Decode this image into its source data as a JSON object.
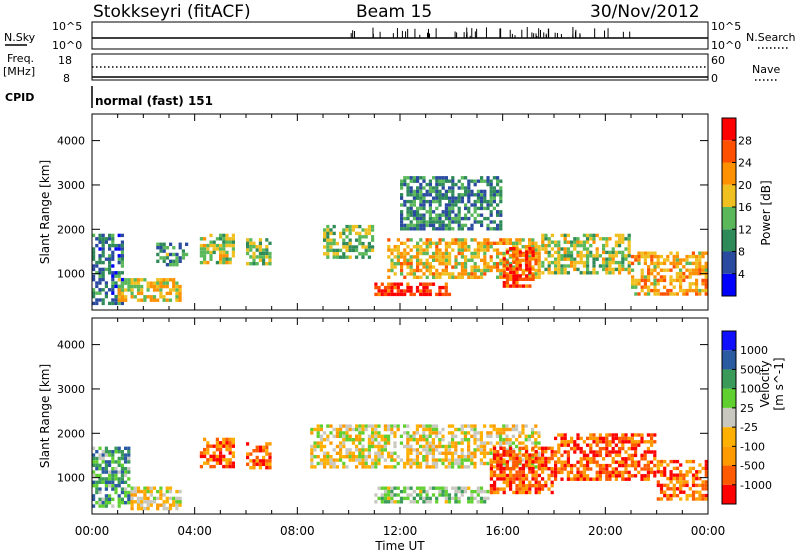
{
  "header": {
    "station": "Stokkseyri (fitACF)",
    "beam": "Beam 15",
    "date": "30/Nov/2012"
  },
  "top_panels": {
    "nsky_label": "N.Sky",
    "nsky_ticks": [
      "10^5",
      "10^0"
    ],
    "nsearch_label": "N.Search",
    "nsearch_ticks": [
      "10^5",
      "10^0"
    ],
    "freq_label": "Freq.",
    "freq_unit": "[MHz]",
    "freq_ticks": [
      "18",
      "8"
    ],
    "nave_label": "Nave",
    "nave_ticks": [
      "60",
      "0"
    ],
    "cpid_label": "CPID",
    "cpid_value": "normal (fast) 151"
  },
  "colors": {
    "power": [
      "#0000ff",
      "#2a4aa0",
      "#2f8a5a",
      "#5ab85a",
      "#f0c020",
      "#ff9000",
      "#ff5000",
      "#ff0000"
    ],
    "velocity": [
      "#ff0000",
      "#ff5a00",
      "#ff9a00",
      "#ffb000",
      "#c8c8c0",
      "#60d030",
      "#3a9a5a",
      "#2a5aa0",
      "#1010ff"
    ]
  },
  "chart_data": [
    {
      "type": "heatmap",
      "name": "power-panel",
      "ylabel": "Slant Range [km]",
      "xlabel": "Time UT",
      "x_ticks": [
        "00:00",
        "04:00",
        "08:00",
        "12:00",
        "16:00",
        "20:00",
        "00:00"
      ],
      "y_ticks": [
        1000,
        2000,
        3000,
        4000
      ],
      "x_range_hours": [
        0,
        24
      ],
      "y_range_km": [
        180,
        4600
      ],
      "colorbar": {
        "label": "Power [dB]",
        "ticks": [
          4,
          8,
          12,
          16,
          20,
          24,
          28
        ],
        "range": [
          0,
          32
        ]
      },
      "regions": [
        {
          "t0": 0.0,
          "t1": 1.2,
          "r0": 300,
          "r1": 1900,
          "level": 0.25
        },
        {
          "t0": 1.0,
          "t1": 3.5,
          "r0": 350,
          "r1": 900,
          "level": 0.55
        },
        {
          "t0": 2.5,
          "t1": 3.8,
          "r0": 1200,
          "r1": 1700,
          "level": 0.35
        },
        {
          "t0": 4.2,
          "t1": 5.6,
          "r0": 1200,
          "r1": 1900,
          "level": 0.5
        },
        {
          "t0": 6.0,
          "t1": 7.0,
          "r0": 1200,
          "r1": 1800,
          "level": 0.45
        },
        {
          "t0": 9.0,
          "t1": 11.0,
          "r0": 1300,
          "r1": 2100,
          "level": 0.45
        },
        {
          "t0": 11.0,
          "t1": 14.0,
          "r0": 500,
          "r1": 800,
          "level": 0.9
        },
        {
          "t0": 11.5,
          "t1": 17.5,
          "r0": 900,
          "r1": 1800,
          "level": 0.6
        },
        {
          "t0": 12.0,
          "t1": 16.0,
          "r0": 2000,
          "r1": 3200,
          "level": 0.3
        },
        {
          "t0": 16.0,
          "t1": 17.2,
          "r0": 700,
          "r1": 1600,
          "level": 0.85
        },
        {
          "t0": 17.5,
          "t1": 21.0,
          "r0": 1000,
          "r1": 1900,
          "level": 0.5
        },
        {
          "t0": 21.0,
          "t1": 24.0,
          "r0": 500,
          "r1": 1500,
          "level": 0.65
        }
      ]
    },
    {
      "type": "heatmap",
      "name": "velocity-panel",
      "ylabel": "Slant Range [km]",
      "xlabel": "Time UT",
      "x_ticks": [
        "00:00",
        "04:00",
        "08:00",
        "12:00",
        "16:00",
        "20:00",
        "00:00"
      ],
      "y_ticks": [
        1000,
        2000,
        3000,
        4000
      ],
      "x_range_hours": [
        0,
        24
      ],
      "y_range_km": [
        180,
        4600
      ],
      "colorbar": {
        "label": "Velocity",
        "unit": "[m s^-1]",
        "ticks": [
          1000,
          500,
          100,
          25,
          -25,
          -100,
          -500,
          -1000
        ]
      },
      "regions": [
        {
          "t0": 0.0,
          "t1": 1.5,
          "r0": 300,
          "r1": 1700,
          "level": 0.7
        },
        {
          "t0": 1.5,
          "t1": 3.5,
          "r0": 300,
          "r1": 800,
          "level": 0.45
        },
        {
          "t0": 4.2,
          "t1": 5.6,
          "r0": 1200,
          "r1": 1900,
          "level": 0.2
        },
        {
          "t0": 6.0,
          "t1": 7.0,
          "r0": 1200,
          "r1": 1800,
          "level": 0.2
        },
        {
          "t0": 8.5,
          "t1": 17.5,
          "r0": 1200,
          "r1": 2200,
          "level": 0.45
        },
        {
          "t0": 11.0,
          "t1": 15.5,
          "r0": 400,
          "r1": 800,
          "level": 0.6
        },
        {
          "t0": 15.5,
          "t1": 18.0,
          "r0": 600,
          "r1": 1700,
          "level": 0.15
        },
        {
          "t0": 18.0,
          "t1": 22.0,
          "r0": 900,
          "r1": 2000,
          "level": 0.15
        },
        {
          "t0": 22.0,
          "t1": 24.0,
          "r0": 500,
          "r1": 1400,
          "level": 0.2
        }
      ]
    }
  ]
}
